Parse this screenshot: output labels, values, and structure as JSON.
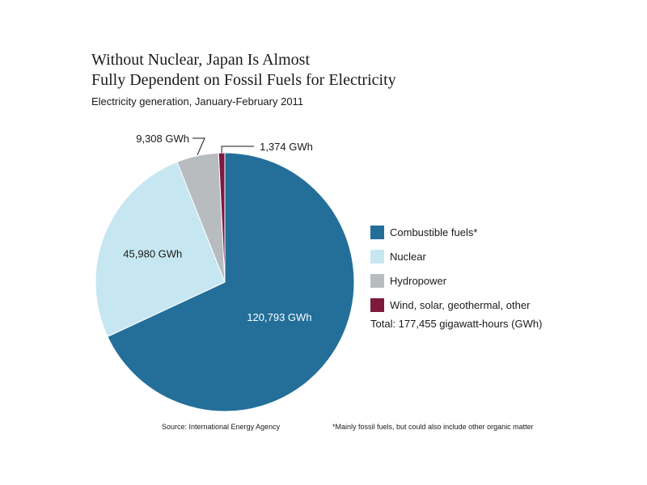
{
  "chart_data": {
    "type": "pie",
    "title_lines": [
      "Without Nuclear, Japan Is Almost",
      "Fully Dependent on Fossil Fuels for Electricity"
    ],
    "subtitle": "Electricity generation, January-February 2011",
    "slices": [
      {
        "name": "Combustible fuels*",
        "value": 120793,
        "label": "120,793 GWh",
        "color": "#236f9a"
      },
      {
        "name": "Nuclear",
        "value": 45980,
        "label": "45,980 GWh",
        "color": "#c6e7f1"
      },
      {
        "name": "Hydropower",
        "value": 9308,
        "label": "9,308 GWh",
        "color": "#b9bcbe"
      },
      {
        "name": "Wind, solar, geothermal, other",
        "value": 1374,
        "label": "1,374 GWh",
        "color": "#7d1a3c"
      }
    ],
    "legend_position": "right",
    "total_text": "Total: 177,455 gigawatt-hours (GWh)"
  },
  "source": "Source:  International Energy Agency",
  "footnote": "*Mainly fossil fuels, but could also include other organic matter"
}
